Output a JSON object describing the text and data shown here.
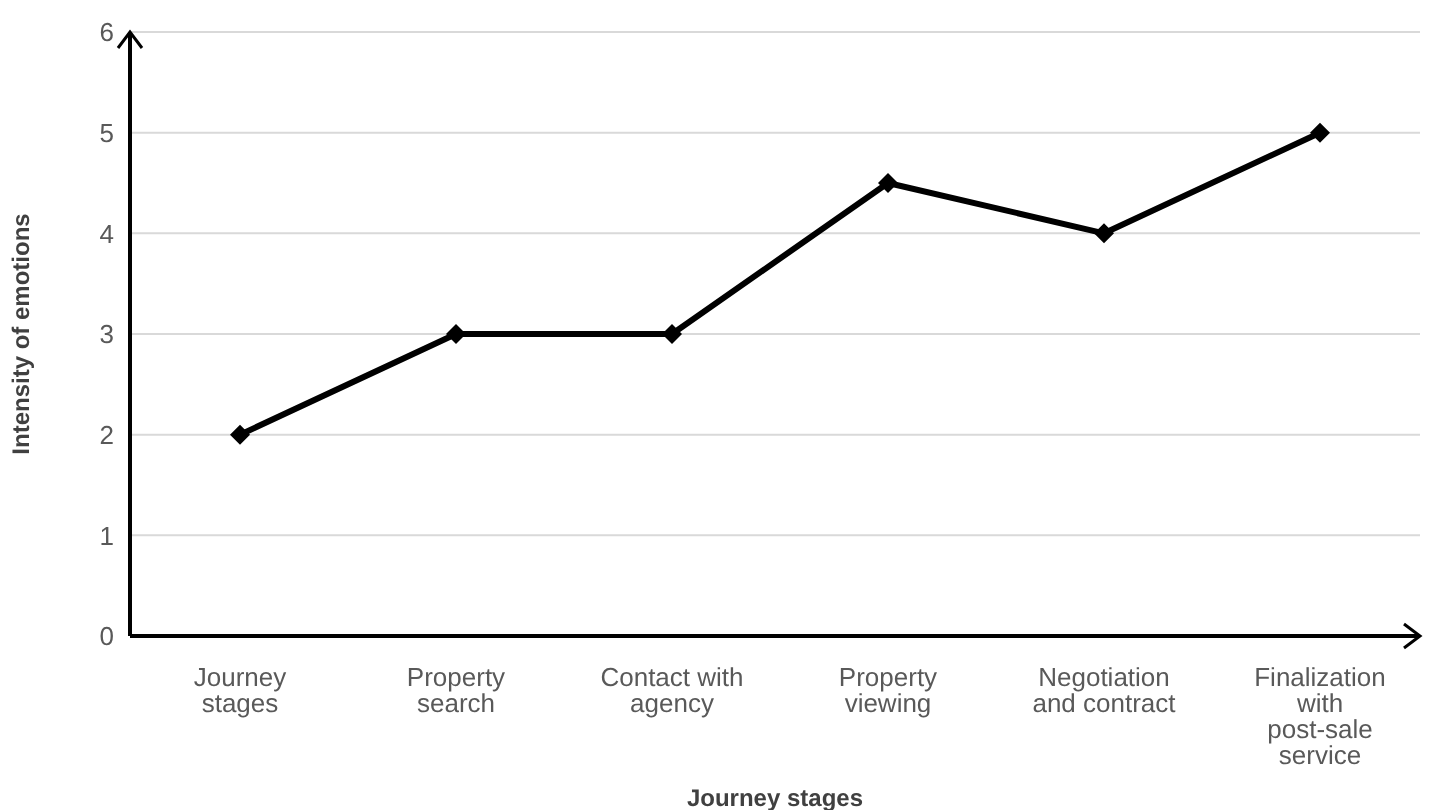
{
  "chart_data": {
    "type": "line",
    "xlabel": "Journey stages",
    "ylabel": "Intensity of emotions",
    "categories": [
      "Journey stages",
      "Property search",
      "Contact with agency",
      "Property viewing",
      "Negotiation and contract",
      "Finalization with post-sale service"
    ],
    "series": [
      {
        "color": "#000000",
        "values": [
          2,
          3,
          3,
          4.5,
          4,
          5
        ]
      }
    ],
    "ylim": [
      0,
      6
    ],
    "yticks": [
      0,
      1,
      2,
      3,
      4,
      5,
      6
    ],
    "grid": "y",
    "legend": false,
    "marker": "diamond",
    "line_style": "solid"
  }
}
